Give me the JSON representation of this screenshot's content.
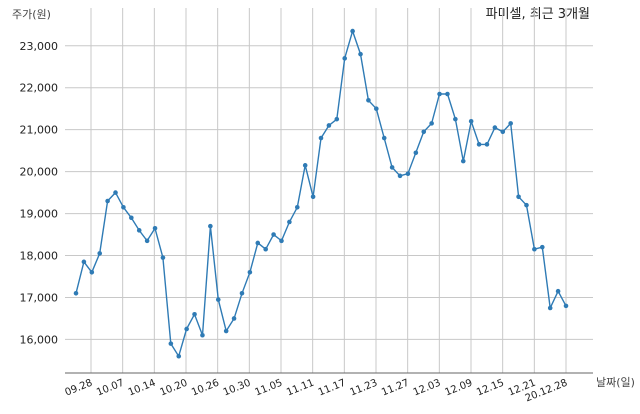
{
  "chart_data": {
    "type": "line",
    "title": "파미셀, 최근 3개월",
    "ylabel": "주가(원)",
    "xlabel": "날짜(일)",
    "y_ticks": [
      "16,000",
      "17,000",
      "18,000",
      "19,000",
      "20,000",
      "21,000",
      "22,000",
      "23,000"
    ],
    "x_ticks": [
      "09.28",
      "10.07",
      "10.14",
      "10.20",
      "10.26",
      "10.30",
      "11.05",
      "11.11",
      "11.17",
      "11.23",
      "11.27",
      "12.03",
      "12.09",
      "12.15",
      "12.21",
      "20.12.28"
    ],
    "ylim": [
      15200,
      23900
    ],
    "grid": true,
    "series_color": "#2f7bb5",
    "values": [
      17100,
      17850,
      17600,
      18050,
      19300,
      19500,
      19150,
      18900,
      18600,
      18350,
      18650,
      17950,
      15900,
      15600,
      16250,
      16600,
      16100,
      18700,
      16950,
      16200,
      16500,
      17100,
      17600,
      18300,
      18150,
      18500,
      18350,
      18800,
      19150,
      20150,
      19400,
      20800,
      21100,
      21250,
      22700,
      23350,
      22800,
      21700,
      21500,
      20800,
      20100,
      19900,
      19950,
      20450,
      20950,
      21150,
      21850,
      21850,
      21250,
      20250,
      21200,
      20650,
      20650,
      21050,
      20950,
      21150,
      19400,
      19200,
      18150,
      18200,
      16750,
      17150,
      16800
    ]
  }
}
